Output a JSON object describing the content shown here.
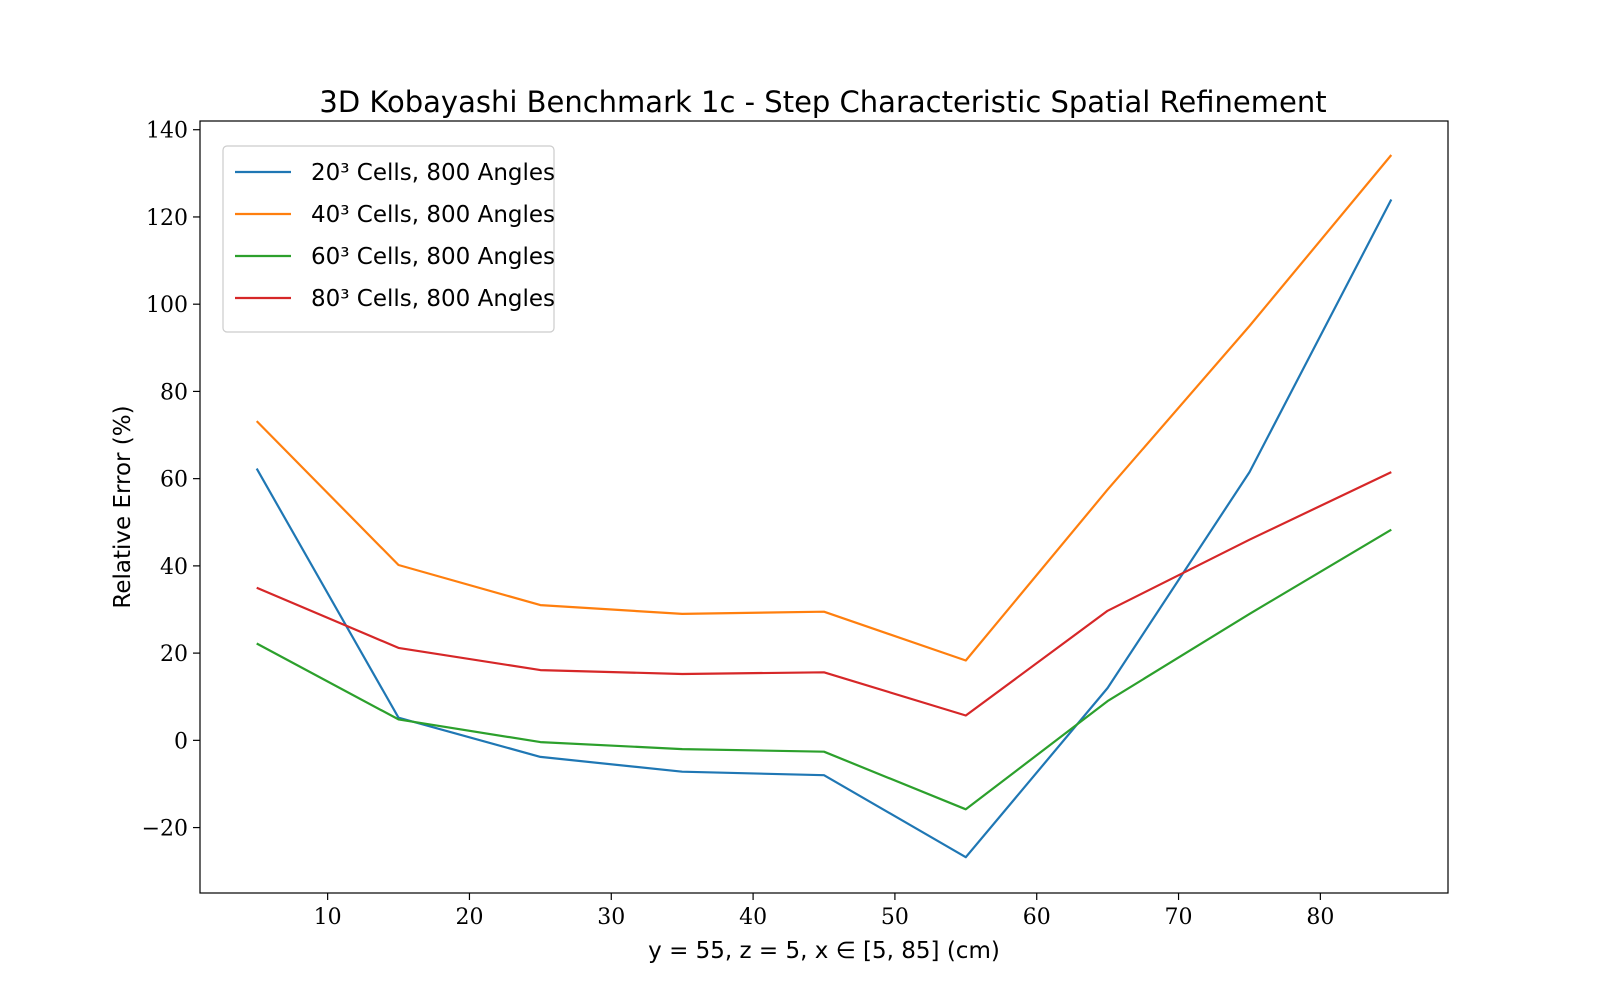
{
  "chart_data": {
    "type": "line",
    "title": "3D Kobayashi Benchmark 1c - Step Characteristic Spatial Refinement",
    "xlabel": "y = 55, z = 5, x ∈ [5, 85] (cm)",
    "ylabel": "Relative Error (%)",
    "xlim": [
      1,
      89
    ],
    "ylim": [
      -35,
      142
    ],
    "xticks": [
      10,
      20,
      30,
      40,
      50,
      60,
      70,
      80
    ],
    "yticks": [
      -20,
      0,
      20,
      40,
      60,
      80,
      100,
      120,
      140
    ],
    "ytick_labels": [
      "−20",
      "0",
      "20",
      "40",
      "60",
      "80",
      "100",
      "120",
      "140"
    ],
    "legend_position": "upper-left",
    "x": [
      5,
      15,
      25,
      35,
      45,
      55,
      65,
      75,
      85
    ],
    "series": [
      {
        "name": "20³ Cells, 800 Angles",
        "color": "#1f77b4",
        "values": [
          62.3,
          5.2,
          -3.8,
          -7.2,
          -8.0,
          -26.8,
          12.0,
          61.5,
          124.0
        ]
      },
      {
        "name": "40³ Cells, 800 Angles",
        "color": "#ff7f0e",
        "values": [
          73.2,
          40.2,
          31.0,
          29.0,
          29.5,
          18.3,
          57.5,
          95.0,
          134.2
        ]
      },
      {
        "name": "60³ Cells, 800 Angles",
        "color": "#2ca02c",
        "values": [
          22.2,
          4.8,
          -0.4,
          -2.0,
          -2.6,
          -15.8,
          9.0,
          29.0,
          48.3
        ]
      },
      {
        "name": "80³ Cells, 800 Angles",
        "color": "#d62728",
        "values": [
          35.0,
          21.2,
          16.1,
          15.2,
          15.6,
          5.7,
          29.7,
          46.0,
          61.5
        ]
      }
    ]
  }
}
